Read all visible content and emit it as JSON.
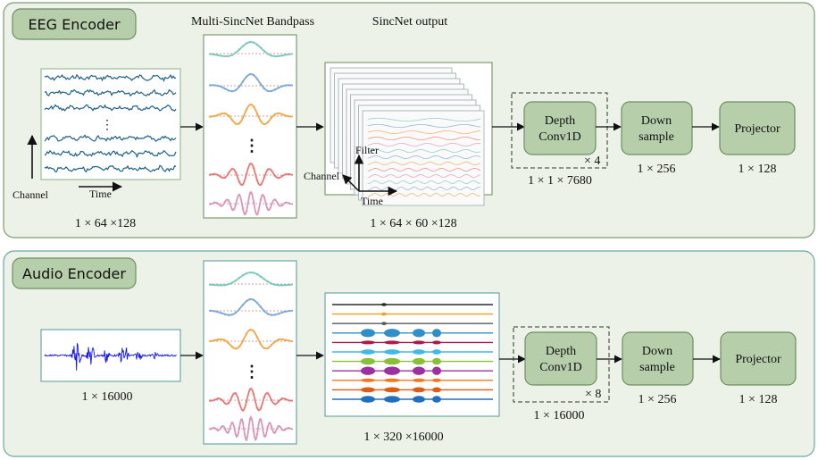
{
  "eeg": {
    "section_label": "EEG Encoder",
    "bandpass_title": "Multi-SincNet Bandpass",
    "output_title": "SincNet output",
    "axis_channel": "Channel",
    "axis_time": "Time",
    "axis_filter": "Filter",
    "input_shape": "1 × 64 ×128",
    "output_shape": "1 × 64 × 60 ×128",
    "depth_block": [
      "Depth",
      "Conv1D"
    ],
    "depth_repeat": "× 4",
    "depth_shape": "1 × 1 × 7680",
    "down_block": [
      "Down",
      "sample"
    ],
    "down_shape": "1 × 256",
    "proj_block": "Projector",
    "proj_shape": "1 × 128",
    "ellipsis": "⋮"
  },
  "audio": {
    "section_label": "Audio Encoder",
    "input_shape": "1 × 16000",
    "output_shape": "1 × 320 ×16000",
    "depth_block": [
      "Depth",
      "Conv1D"
    ],
    "depth_repeat": "× 8",
    "depth_shape": "1 × 16000",
    "down_block": [
      "Down",
      "sample"
    ],
    "down_shape": "1 × 256",
    "proj_block": "Projector",
    "proj_shape": "1 × 128",
    "ellipsis": "⋮"
  },
  "colors": {
    "panel_bg": "#edf2e8",
    "panel_border": "#7d9d72",
    "audio_panel_border": "#6aa8a8",
    "block_fill": "#b6ceaa",
    "block_border": "#6d8f62",
    "eeg_signal": "#1f5f8b",
    "audio_wave": "#1515ee",
    "filter_colors": [
      "#7ec8b8",
      "#7ea8d8",
      "#f0a848",
      "#e87878",
      "#d898b8"
    ],
    "audio_tracks": [
      "#2b2b2b",
      "#f0a020",
      "#5a5a5a",
      "#2f8fc8",
      "#b01848",
      "#40b8e8",
      "#88c038",
      "#9b30a0",
      "#f07820",
      "#e05a10",
      "#2070c0"
    ]
  }
}
